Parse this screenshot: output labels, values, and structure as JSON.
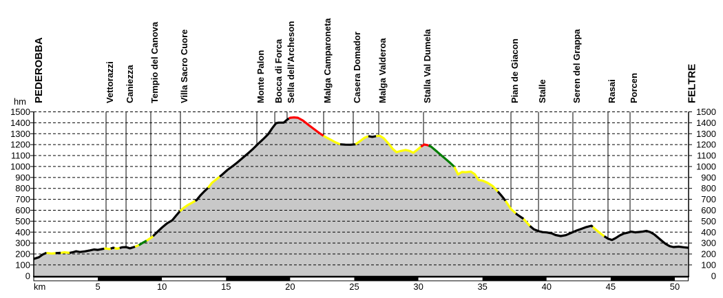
{
  "chart_data": {
    "type": "area",
    "xlabel": "km",
    "ylabel": "hm",
    "xlim": [
      0,
      51.05
    ],
    "ylim": [
      0,
      1500
    ],
    "x_ticks": [
      5,
      10,
      15,
      20,
      25,
      30,
      35,
      40,
      45,
      50
    ],
    "y_ticks": [
      0,
      100,
      200,
      300,
      400,
      500,
      600,
      700,
      800,
      900,
      1000,
      1100,
      1200,
      1300,
      1400,
      1500
    ],
    "grid": "horizontal-dashed",
    "legend": "none",
    "colors": {
      "fill_gray": "#c8c8c8",
      "line_black": "#000000",
      "line_yellow": "#ffff00",
      "line_red": "#ff0000",
      "line_green": "#007d00",
      "background": "#ffffff"
    },
    "waypoints": [
      {
        "label": "PEDEROBBA",
        "km": 0.0,
        "major": true,
        "line": false
      },
      {
        "label": "Vettorazzi",
        "km": 5.64,
        "major": false,
        "line": true
      },
      {
        "label": "Caniezza",
        "km": 7.2,
        "major": false,
        "line": true
      },
      {
        "label": "Tempio del Canova",
        "km": 9.13,
        "major": false,
        "line": true
      },
      {
        "label": "Villa Sacro Cuore",
        "km": 11.44,
        "major": false,
        "line": true
      },
      {
        "label": "Monte Palon",
        "km": 17.4,
        "major": false,
        "line": true
      },
      {
        "label": "Bocca di Forca",
        "km": 18.8,
        "major": false,
        "line": true
      },
      {
        "label": "Sella dell'Archeson",
        "km": 19.76,
        "major": false,
        "line": true
      },
      {
        "label": "Malga Camparoneta",
        "km": 22.61,
        "major": false,
        "line": true
      },
      {
        "label": "Casera Domador",
        "km": 24.92,
        "major": false,
        "line": true
      },
      {
        "label": "Malga Valderoa",
        "km": 26.91,
        "major": false,
        "line": true
      },
      {
        "label": "Stalla Val Dumela",
        "km": 30.4,
        "major": false,
        "line": true
      },
      {
        "label": "Pian de Giacon",
        "km": 37.22,
        "major": false,
        "line": true
      },
      {
        "label": "Stalle",
        "km": 39.37,
        "major": false,
        "line": true
      },
      {
        "label": "Seren del Grappa",
        "km": 42.05,
        "major": false,
        "line": true
      },
      {
        "label": "Rasai",
        "km": 44.79,
        "major": false,
        "line": true
      },
      {
        "label": "Porcen",
        "km": 46.51,
        "major": false,
        "line": true
      },
      {
        "label": "FELTRE",
        "km": 50.95,
        "major": true,
        "line": false
      }
    ],
    "profile": [
      [
        0,
        155
      ],
      [
        0.4,
        170
      ],
      [
        0.7,
        195
      ],
      [
        1.0,
        210
      ],
      [
        1.4,
        204
      ],
      [
        1.7,
        207
      ],
      [
        2.1,
        210
      ],
      [
        2.4,
        215
      ],
      [
        2.8,
        210
      ],
      [
        3.1,
        217
      ],
      [
        3.3,
        225
      ],
      [
        3.6,
        218
      ],
      [
        4.0,
        224
      ],
      [
        4.4,
        233
      ],
      [
        4.7,
        241
      ],
      [
        5.0,
        237
      ],
      [
        5.3,
        244
      ],
      [
        5.6,
        251
      ],
      [
        5.9,
        245
      ],
      [
        6.2,
        257
      ],
      [
        6.5,
        248
      ],
      [
        6.9,
        261
      ],
      [
        7.2,
        263
      ],
      [
        7.5,
        252
      ],
      [
        7.9,
        266
      ],
      [
        8.2,
        281
      ],
      [
        8.5,
        302
      ],
      [
        8.8,
        322
      ],
      [
        9.2,
        352
      ],
      [
        9.6,
        397
      ],
      [
        10.0,
        441
      ],
      [
        10.4,
        480
      ],
      [
        10.8,
        508
      ],
      [
        11.1,
        550
      ],
      [
        11.4,
        592
      ],
      [
        11.7,
        622
      ],
      [
        12.0,
        646
      ],
      [
        12.4,
        672
      ],
      [
        12.7,
        693
      ],
      [
        13.0,
        736
      ],
      [
        13.3,
        772
      ],
      [
        13.6,
        805
      ],
      [
        13.9,
        851
      ],
      [
        14.3,
        888
      ],
      [
        14.7,
        926
      ],
      [
        15.1,
        968
      ],
      [
        15.5,
        1002
      ],
      [
        15.9,
        1039
      ],
      [
        16.3,
        1079
      ],
      [
        16.7,
        1119
      ],
      [
        17.1,
        1161
      ],
      [
        17.5,
        1207
      ],
      [
        17.9,
        1251
      ],
      [
        18.3,
        1297
      ],
      [
        18.6,
        1350
      ],
      [
        18.9,
        1396
      ],
      [
        19.1,
        1401
      ],
      [
        19.5,
        1402
      ],
      [
        19.8,
        1432
      ],
      [
        20.0,
        1446
      ],
      [
        20.3,
        1449
      ],
      [
        20.6,
        1446
      ],
      [
        21.0,
        1421
      ],
      [
        21.5,
        1374
      ],
      [
        22.1,
        1321
      ],
      [
        22.4,
        1296
      ],
      [
        22.7,
        1273
      ],
      [
        23.1,
        1249
      ],
      [
        23.5,
        1223
      ],
      [
        23.9,
        1203
      ],
      [
        24.3,
        1200
      ],
      [
        24.7,
        1199
      ],
      [
        25.1,
        1203
      ],
      [
        25.5,
        1236
      ],
      [
        25.8,
        1263
      ],
      [
        26.1,
        1278
      ],
      [
        26.4,
        1271
      ],
      [
        26.7,
        1278
      ],
      [
        27.0,
        1281
      ],
      [
        27.3,
        1259
      ],
      [
        27.7,
        1206
      ],
      [
        28.0,
        1161
      ],
      [
        28.3,
        1131
      ],
      [
        28.6,
        1141
      ],
      [
        29.0,
        1151
      ],
      [
        29.3,
        1143
      ],
      [
        29.6,
        1126
      ],
      [
        29.9,
        1151
      ],
      [
        30.2,
        1181
      ],
      [
        30.45,
        1201
      ],
      [
        30.7,
        1196
      ],
      [
        31.0,
        1181
      ],
      [
        31.4,
        1141
      ],
      [
        31.8,
        1101
      ],
      [
        32.2,
        1061
      ],
      [
        32.5,
        1031
      ],
      [
        32.8,
        998
      ],
      [
        33.1,
        928
      ],
      [
        33.4,
        950
      ],
      [
        33.7,
        948
      ],
      [
        34.1,
        953
      ],
      [
        34.4,
        930
      ],
      [
        34.7,
        876
      ],
      [
        35.0,
        871
      ],
      [
        35.4,
        851
      ],
      [
        35.8,
        821
      ],
      [
        36.2,
        771
      ],
      [
        36.5,
        731
      ],
      [
        36.8,
        686
      ],
      [
        37.2,
        614
      ],
      [
        37.7,
        561
      ],
      [
        38.2,
        521
      ],
      [
        38.7,
        456
      ],
      [
        39.0,
        426
      ],
      [
        39.4,
        408
      ],
      [
        39.7,
        400
      ],
      [
        40.0,
        397
      ],
      [
        40.4,
        389
      ],
      [
        40.7,
        373
      ],
      [
        41.1,
        364
      ],
      [
        41.5,
        372
      ],
      [
        41.9,
        392
      ],
      [
        42.3,
        412
      ],
      [
        42.7,
        429
      ],
      [
        43.1,
        446
      ],
      [
        43.5,
        458
      ],
      [
        43.8,
        426
      ],
      [
        44.1,
        398
      ],
      [
        44.5,
        361
      ],
      [
        44.8,
        339
      ],
      [
        45.1,
        328
      ],
      [
        45.4,
        346
      ],
      [
        45.7,
        369
      ],
      [
        46.0,
        386
      ],
      [
        46.3,
        394
      ],
      [
        46.6,
        404
      ],
      [
        46.9,
        398
      ],
      [
        47.2,
        401
      ],
      [
        47.5,
        405
      ],
      [
        47.8,
        411
      ],
      [
        48.1,
        399
      ],
      [
        48.4,
        379
      ],
      [
        48.7,
        349
      ],
      [
        49.0,
        319
      ],
      [
        49.3,
        291
      ],
      [
        49.6,
        271
      ],
      [
        49.9,
        263
      ],
      [
        50.3,
        267
      ],
      [
        50.7,
        261
      ],
      [
        51.05,
        257
      ]
    ],
    "line_segments": [
      {
        "from": 0,
        "to": 1.0,
        "color": "black"
      },
      {
        "from": 1.0,
        "to": 1.7,
        "color": "yellow"
      },
      {
        "from": 1.7,
        "to": 2.1,
        "color": "black"
      },
      {
        "from": 2.1,
        "to": 2.8,
        "color": "yellow"
      },
      {
        "from": 2.8,
        "to": 5.5,
        "color": "black"
      },
      {
        "from": 5.5,
        "to": 6.0,
        "color": "yellow"
      },
      {
        "from": 6.0,
        "to": 6.3,
        "color": "black"
      },
      {
        "from": 6.3,
        "to": 6.7,
        "color": "yellow"
      },
      {
        "from": 6.7,
        "to": 7.9,
        "color": "black"
      },
      {
        "from": 7.9,
        "to": 8.2,
        "color": "yellow"
      },
      {
        "from": 8.2,
        "to": 8.8,
        "color": "green"
      },
      {
        "from": 8.8,
        "to": 9.3,
        "color": "yellow"
      },
      {
        "from": 9.3,
        "to": 11.4,
        "color": "black"
      },
      {
        "from": 11.4,
        "to": 12.6,
        "color": "yellow"
      },
      {
        "from": 12.6,
        "to": 13.6,
        "color": "black"
      },
      {
        "from": 13.6,
        "to": 14.5,
        "color": "yellow"
      },
      {
        "from": 14.5,
        "to": 19.9,
        "color": "black"
      },
      {
        "from": 19.9,
        "to": 22.6,
        "color": "red"
      },
      {
        "from": 22.6,
        "to": 23.9,
        "color": "yellow"
      },
      {
        "from": 23.9,
        "to": 25.1,
        "color": "black"
      },
      {
        "from": 25.1,
        "to": 26.1,
        "color": "yellow"
      },
      {
        "from": 26.1,
        "to": 26.7,
        "color": "black"
      },
      {
        "from": 26.7,
        "to": 30.2,
        "color": "yellow"
      },
      {
        "from": 30.2,
        "to": 30.8,
        "color": "red"
      },
      {
        "from": 30.8,
        "to": 32.8,
        "color": "green"
      },
      {
        "from": 32.8,
        "to": 36.2,
        "color": "yellow"
      },
      {
        "from": 36.2,
        "to": 36.8,
        "color": "black"
      },
      {
        "from": 36.8,
        "to": 37.6,
        "color": "yellow"
      },
      {
        "from": 37.6,
        "to": 38.2,
        "color": "black"
      },
      {
        "from": 38.2,
        "to": 38.7,
        "color": "yellow"
      },
      {
        "from": 38.7,
        "to": 43.6,
        "color": "black"
      },
      {
        "from": 43.6,
        "to": 44.5,
        "color": "yellow"
      },
      {
        "from": 44.5,
        "to": 51.05,
        "color": "black"
      }
    ],
    "scale_bar": {
      "interval_km": 5,
      "start_color": "white",
      "alternate_color": "black"
    }
  }
}
